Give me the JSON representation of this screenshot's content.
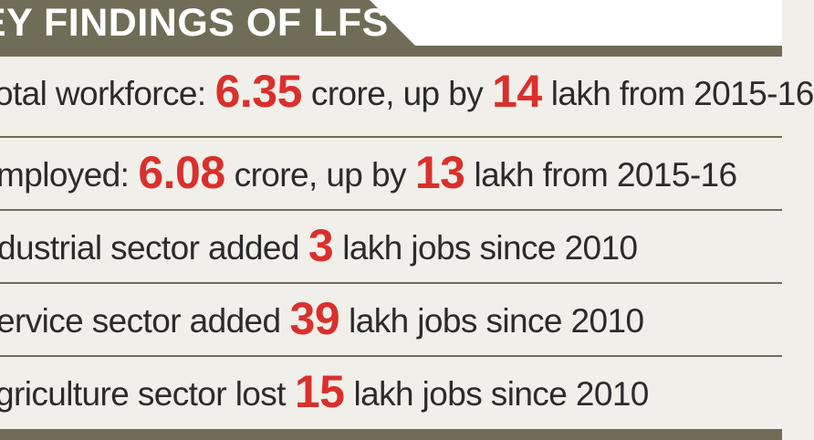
{
  "header": {
    "title": "EY FINDINGS OF LFS"
  },
  "findings": [
    {
      "pre": "otal workforce:",
      "num1": "6.35",
      "mid": "crore, up by",
      "num2": "14",
      "post": "lakh from 2015-16"
    },
    {
      "pre": "mployed:",
      "num1": "6.08",
      "mid": "crore, up by",
      "num2": "13",
      "post": "lakh from 2015-16"
    },
    {
      "pre": "dustrial sector added",
      "num1": "3",
      "post": "lakh jobs since 2010"
    },
    {
      "pre": "ervice sector added",
      "num1": "39",
      "post": "lakh jobs since 2010"
    },
    {
      "pre": "griculture sector lost",
      "num1": "15",
      "post": "lakh jobs since 2010"
    }
  ],
  "colors": {
    "band": "#6f6d57",
    "highlight": "#d9302c",
    "background": "#f1efe9",
    "text": "#2b2b2b"
  }
}
